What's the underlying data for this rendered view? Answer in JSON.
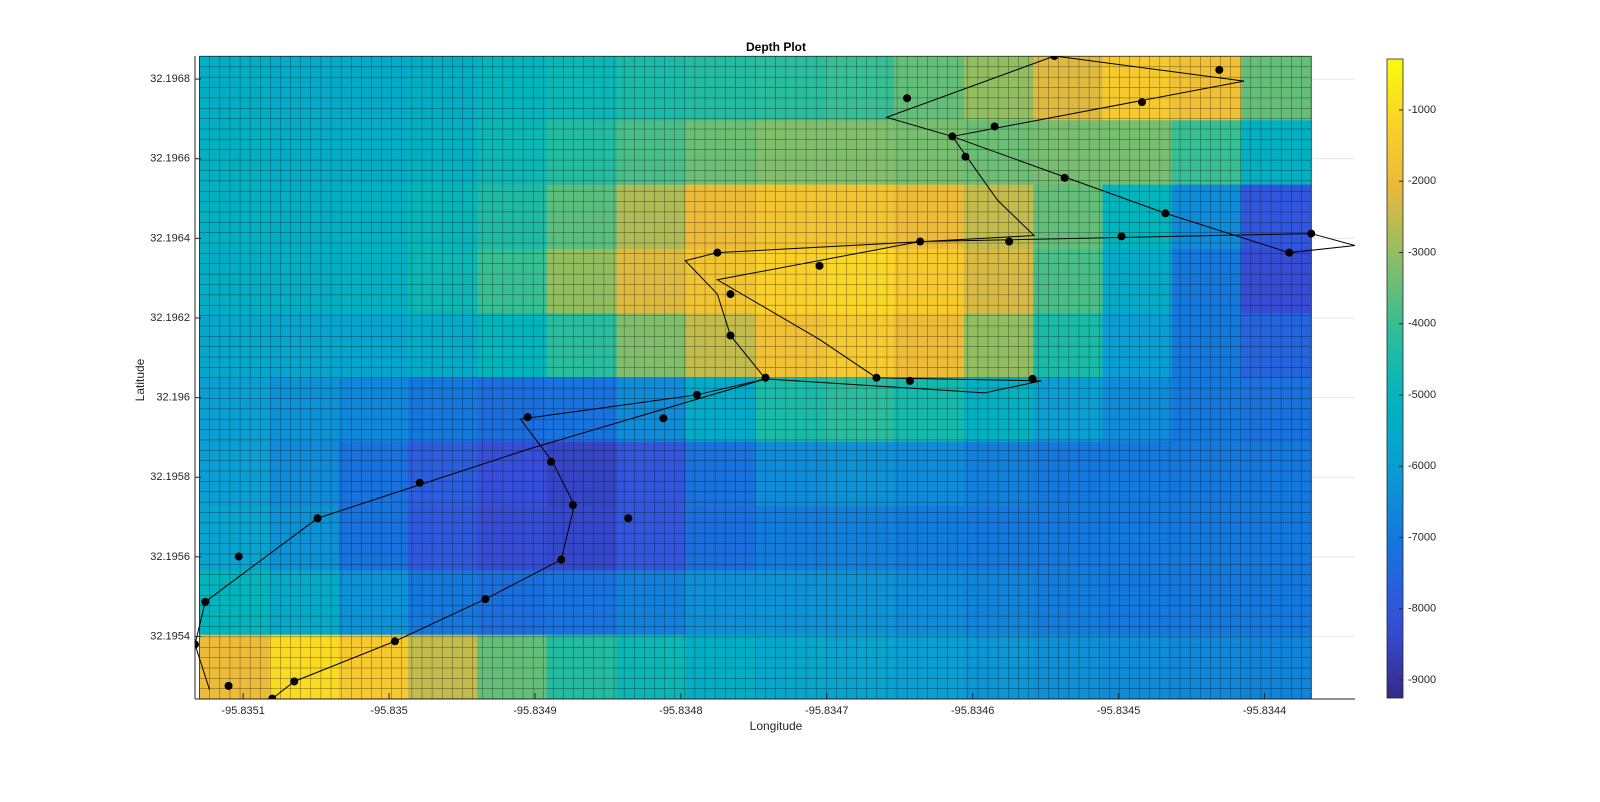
{
  "chart_data": {
    "type": "heatmap",
    "title": "Depth Plot",
    "xlabel": "Longitude",
    "ylabel": "Latitude",
    "colormap": "parula",
    "grid": true,
    "xlim": [
      -95.835133,
      -95.834338
    ],
    "ylim": [
      32.195243,
      32.196858
    ],
    "xticks": [
      -95.8351,
      -95.835,
      -95.8349,
      -95.8348,
      -95.8347,
      -95.8346,
      -95.8345,
      -95.8344
    ],
    "yticks": [
      32.1954,
      32.1956,
      32.1958,
      32.196,
      32.1962,
      32.1964,
      32.1966,
      32.1968
    ],
    "clim": [
      -9253,
      -284
    ],
    "cticks": [
      -9000,
      -8000,
      -7000,
      -6000,
      -5000,
      -4000,
      -3000,
      -2000,
      -1000
    ],
    "x": [
      -95.835106,
      -95.835058,
      -95.835011,
      -95.834963,
      -95.834916,
      -95.834868,
      -95.83482,
      -95.834773,
      -95.834725,
      -95.834678,
      -95.83463,
      -95.834582,
      -95.834535,
      -95.834487,
      -95.83444,
      -95.834392
    ],
    "y": [
      32.196777,
      32.196616,
      32.196454,
      32.196293,
      32.196131,
      32.19597,
      32.195808,
      32.195647,
      32.195485,
      32.195324
    ],
    "values": [
      [
        -5300,
        -5500,
        -5500,
        -5300,
        -5000,
        -4800,
        -4500,
        -4300,
        -4200,
        -4000,
        -3500,
        -3000,
        -2200,
        -1500,
        -1800,
        -3500
      ],
      [
        -5200,
        -5400,
        -5400,
        -5200,
        -4800,
        -4300,
        -3800,
        -3400,
        -3200,
        -3200,
        -3300,
        -3400,
        -3300,
        -3300,
        -4000,
        -5200
      ],
      [
        -5200,
        -5300,
        -5200,
        -4900,
        -4400,
        -3600,
        -2700,
        -2000,
        -1700,
        -1700,
        -2000,
        -2500,
        -3500,
        -5000,
        -6500,
        -8000
      ],
      [
        -5300,
        -5300,
        -5200,
        -4800,
        -4000,
        -3000,
        -2200,
        -1700,
        -1300,
        -1100,
        -1500,
        -2300,
        -3800,
        -5500,
        -7000,
        -8300
      ],
      [
        -5600,
        -5700,
        -5700,
        -5500,
        -5000,
        -4200,
        -3200,
        -2500,
        -1800,
        -1500,
        -2000,
        -3000,
        -4500,
        -6000,
        -7000,
        -7600
      ],
      [
        -6000,
        -6300,
        -6600,
        -7000,
        -7300,
        -7200,
        -6500,
        -5500,
        -4500,
        -4200,
        -4600,
        -5200,
        -6000,
        -6500,
        -7000,
        -7200
      ],
      [
        -6000,
        -6500,
        -7200,
        -7800,
        -8200,
        -8500,
        -8000,
        -7200,
        -6500,
        -6300,
        -6500,
        -6800,
        -7000,
        -7000,
        -7000,
        -7000
      ],
      [
        -5800,
        -6300,
        -7200,
        -7900,
        -8300,
        -8400,
        -8000,
        -7300,
        -6900,
        -6800,
        -6900,
        -7000,
        -7000,
        -7000,
        -7000,
        -7000
      ],
      [
        -5000,
        -5500,
        -6300,
        -7000,
        -7300,
        -7200,
        -6800,
        -6400,
        -6300,
        -6300,
        -6500,
        -6700,
        -6900,
        -7000,
        -7000,
        -7000
      ],
      [
        -2000,
        -1000,
        -1500,
        -2500,
        -3500,
        -4300,
        -4800,
        -5300,
        -5600,
        -5800,
        -6000,
        -6200,
        -6400,
        -6500,
        -6600,
        -6700
      ]
    ],
    "overlays": [
      {
        "type": "line",
        "color": "#000000",
        "x": [
          -95.83508,
          -95.835065,
          -95.834996,
          -95.834934,
          -95.834882,
          -95.834873,
          -95.834888,
          -95.83491,
          -95.834789,
          -95.834742,
          -95.834766,
          -95.834775,
          -95.834797,
          -95.834775,
          -95.834558,
          -95.834583,
          -95.834614,
          -95.834414,
          -95.834544,
          -95.834659,
          -95.834614,
          -95.834468,
          -95.834383,
          -95.834338,
          -95.834368,
          -95.834636,
          -95.834775,
          -95.834705,
          -95.834666,
          -95.834553,
          -95.834592,
          -95.834742,
          -95.834905,
          -95.835049,
          -95.835126,
          -95.835133,
          -95.835123
        ],
        "y": [
          32.195244,
          32.195287,
          32.195388,
          32.195494,
          32.195593,
          32.19573,
          32.195839,
          32.195946,
          32.196007,
          32.196047,
          32.196156,
          32.19626,
          32.196344,
          32.196364,
          32.196407,
          32.196496,
          32.196656,
          32.196795,
          32.196858,
          32.196704,
          32.196656,
          32.196463,
          32.196364,
          32.196382,
          32.196412,
          32.196392,
          32.196296,
          32.196146,
          32.19605,
          32.196042,
          32.196012,
          32.196047,
          32.19587,
          32.195697,
          32.195487,
          32.19538,
          32.195266
        ]
      },
      {
        "type": "scatter",
        "color": "#000000",
        "x": [
          -95.835133,
          -95.835126,
          -95.83511,
          -95.835103,
          -95.83508,
          -95.835065,
          -95.835049,
          -95.834996,
          -95.834979,
          -95.834934,
          -95.834905,
          -95.834889,
          -95.834882,
          -95.834874,
          -95.834836,
          -95.834812,
          -95.834789,
          -95.834775,
          -95.834766,
          -95.834766,
          -95.834742,
          -95.834705,
          -95.834666,
          -95.834643,
          -95.834636,
          -95.834645,
          -95.834614,
          -95.834605,
          -95.834585,
          -95.834575,
          -95.834559,
          -95.834537,
          -95.834544,
          -95.834498,
          -95.834484,
          -95.834468,
          -95.834431,
          -95.834383,
          -95.834368
        ],
        "y": [
          32.19538,
          32.195487,
          32.195276,
          32.195601,
          32.195244,
          32.195287,
          32.195697,
          32.195388,
          32.195786,
          32.195494,
          32.195951,
          32.195839,
          32.195593,
          32.19573,
          32.195697,
          32.195948,
          32.196007,
          32.196364,
          32.19626,
          32.196156,
          32.19605,
          32.196331,
          32.19605,
          32.196042,
          32.196392,
          32.196752,
          32.196656,
          32.196605,
          32.196681,
          32.196392,
          32.196047,
          32.196552,
          32.196858,
          32.196405,
          32.196742,
          32.196463,
          32.196823,
          32.196364,
          32.196412
        ]
      }
    ]
  }
}
